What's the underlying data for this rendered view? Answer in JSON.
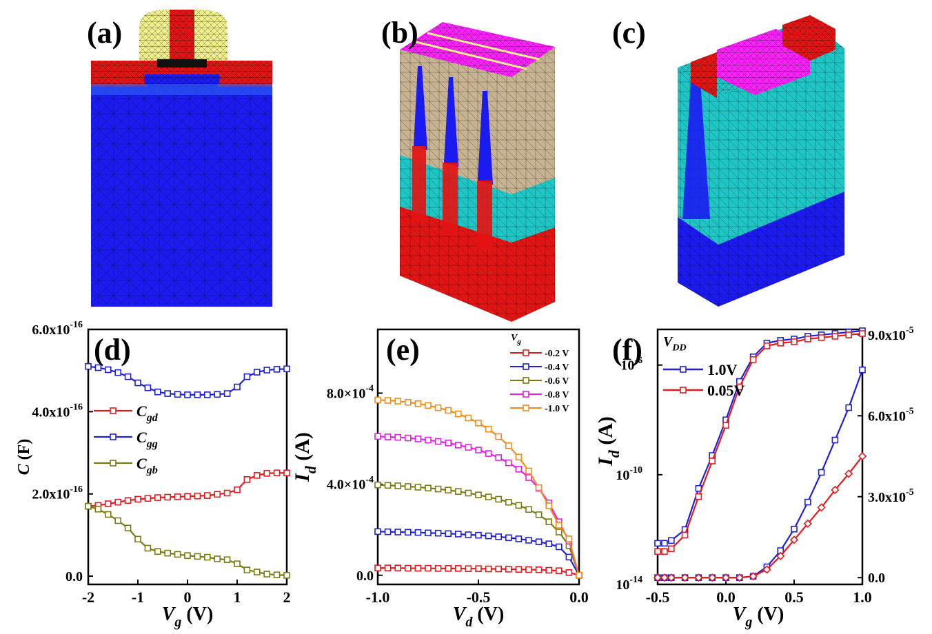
{
  "panel_labels": {
    "a": "(a)",
    "b": "(b)",
    "c": "(c)",
    "d": "(d)",
    "e": "(e)",
    "f": "(f)"
  },
  "colors": {
    "red": "#e41a1c",
    "blue": "#1f1fd6",
    "olive": "#7a7a10",
    "magenta": "#e61ee6",
    "orange": "#f28c1a",
    "mesh_blue": "#1b1bf0",
    "mesh_red": "#e31414",
    "mesh_cyan": "#1fc6c6",
    "mesh_tan": "#c7b391",
    "mesh_magenta": "#ff22ff",
    "mesh_yellow": "#f0f08c",
    "mesh_lightblue": "#2e62f5"
  },
  "chart_data": [
    {
      "id": "d",
      "type": "line",
      "title": "",
      "xlabel": "V",
      "xlabel_sub": "g",
      "xlabel_unit": "(V)",
      "ylabel": "C",
      "ylabel_unit": "(F)",
      "xlim": [
        -2,
        2
      ],
      "ylim": [
        -0.2,
        6.0
      ],
      "xticks": [
        -2,
        -1,
        0,
        1,
        2
      ],
      "xtick_labels": [
        "-2",
        "-1",
        "0",
        "1",
        "2"
      ],
      "yticks": [
        0,
        2,
        4,
        6
      ],
      "ytick_labels": [
        "0.0",
        "2.0x10",
        "4.0x10",
        "6.0x10"
      ],
      "ytick_exp": [
        "",
        "-16",
        "-16",
        "-16"
      ],
      "x": [
        -2,
        -1.8,
        -1.6,
        -1.4,
        -1.2,
        -1.0,
        -0.8,
        -0.6,
        -0.4,
        -0.2,
        0,
        0.2,
        0.4,
        0.6,
        0.8,
        1.0,
        1.2,
        1.4,
        1.6,
        1.8,
        2.0
      ],
      "series": [
        {
          "name": "C",
          "sub": "gd",
          "color": "red",
          "values": [
            1.7,
            1.72,
            1.76,
            1.8,
            1.84,
            1.87,
            1.89,
            1.91,
            1.92,
            1.93,
            1.94,
            1.95,
            1.96,
            1.99,
            2.02,
            2.1,
            2.35,
            2.45,
            2.5,
            2.51,
            2.51
          ]
        },
        {
          "name": "C",
          "sub": "gg",
          "color": "blue",
          "values": [
            5.1,
            5.07,
            5.02,
            4.95,
            4.85,
            4.7,
            4.58,
            4.48,
            4.44,
            4.42,
            4.41,
            4.41,
            4.41,
            4.42,
            4.44,
            4.6,
            4.85,
            4.96,
            5.01,
            5.03,
            5.04
          ]
        },
        {
          "name": "C",
          "sub": "gb",
          "color": "olive",
          "values": [
            1.7,
            1.63,
            1.5,
            1.35,
            1.17,
            0.9,
            0.68,
            0.6,
            0.56,
            0.53,
            0.5,
            0.48,
            0.46,
            0.42,
            0.4,
            0.3,
            0.15,
            0.1,
            0.05,
            0.03,
            0.02
          ]
        }
      ],
      "legend": "middle-left"
    },
    {
      "id": "e",
      "type": "line",
      "title": "",
      "xlabel": "V",
      "xlabel_sub": "d",
      "xlabel_unit": "(V)",
      "ylabel": "I",
      "ylabel_sub": "d",
      "ylabel_unit": "(A)",
      "xlim": [
        -1.0,
        0.0
      ],
      "ylim": [
        -0.4,
        10.8
      ],
      "xticks": [
        -1.0,
        -0.5,
        0.0
      ],
      "xtick_labels": [
        "-1.0",
        "-0.5",
        "0.0"
      ],
      "yticks": [
        0,
        4,
        8
      ],
      "ytick_labels": [
        "0.0",
        "4.0×10",
        "8.0×10"
      ],
      "ytick_exp": [
        "",
        "-4",
        "-4"
      ],
      "legend_title": "V",
      "legend_title_sub": "g",
      "x": [
        -1.0,
        -0.95,
        -0.9,
        -0.85,
        -0.8,
        -0.75,
        -0.7,
        -0.65,
        -0.6,
        -0.55,
        -0.5,
        -0.45,
        -0.4,
        -0.35,
        -0.3,
        -0.25,
        -0.2,
        -0.15,
        -0.1,
        -0.05,
        0.0
      ],
      "series": [
        {
          "name": "-0.2 V",
          "color": "red",
          "values": [
            0.32,
            0.32,
            0.32,
            0.31,
            0.31,
            0.31,
            0.3,
            0.3,
            0.3,
            0.29,
            0.29,
            0.28,
            0.28,
            0.27,
            0.26,
            0.25,
            0.24,
            0.22,
            0.2,
            0.12,
            0.0
          ]
        },
        {
          "name": "-0.4 V",
          "color": "blue",
          "values": [
            1.92,
            1.91,
            1.9,
            1.89,
            1.88,
            1.86,
            1.85,
            1.83,
            1.81,
            1.78,
            1.76,
            1.73,
            1.69,
            1.65,
            1.6,
            1.54,
            1.47,
            1.38,
            1.25,
            0.8,
            0.0
          ]
        },
        {
          "name": "-0.6 V",
          "color": "olive",
          "values": [
            3.97,
            3.95,
            3.93,
            3.9,
            3.87,
            3.83,
            3.79,
            3.74,
            3.68,
            3.61,
            3.53,
            3.44,
            3.34,
            3.21,
            3.07,
            2.89,
            2.66,
            2.35,
            1.9,
            1.3,
            0.0
          ]
        },
        {
          "name": "-0.8 V",
          "color": "magenta",
          "values": [
            6.1,
            6.08,
            6.06,
            6.03,
            5.99,
            5.94,
            5.88,
            5.81,
            5.72,
            5.62,
            5.5,
            5.35,
            5.17,
            4.94,
            4.66,
            4.29,
            3.82,
            3.18,
            2.35,
            1.5,
            0.0
          ]
        },
        {
          "name": "-1.0 V",
          "color": "orange",
          "values": [
            7.7,
            7.68,
            7.65,
            7.6,
            7.54,
            7.46,
            7.36,
            7.24,
            7.09,
            6.91,
            6.69,
            6.42,
            6.09,
            5.69,
            5.19,
            4.58,
            3.85,
            3.05,
            2.2,
            1.6,
            0.0
          ]
        }
      ],
      "legend": "top-right"
    },
    {
      "id": "f",
      "type": "line",
      "title": "",
      "xlabel": "V",
      "xlabel_sub": "g",
      "xlabel_unit": "(V)",
      "ylabel": "I",
      "ylabel_sub": "d",
      "ylabel_unit": "(A)",
      "xlim": [
        -0.5,
        1.0
      ],
      "ylog_lim": [
        -14,
        -4.7
      ],
      "ylinear_lim": [
        -2.5,
        92
      ],
      "xticks": [
        -0.5,
        0.0,
        0.5,
        1.0
      ],
      "xtick_labels": [
        "-0.5",
        "0.0",
        "0.5",
        "1.0"
      ],
      "yticks_log": [
        -14,
        -10,
        -6
      ],
      "ytick_labels_log": [
        "10",
        "10",
        "10"
      ],
      "ytick_exp_log": [
        "-14",
        "-10",
        "-6"
      ],
      "yticks_right": [
        0,
        30,
        60,
        90
      ],
      "ytick_labels_right": [
        "0.0",
        "3.0x10",
        "6.0x10",
        "9.0x10"
      ],
      "ytick_exp_right": [
        "",
        "-5",
        "-5",
        "-5"
      ],
      "legend_title": "V",
      "legend_title_sub": "DD",
      "x": [
        -0.5,
        -0.45,
        -0.4,
        -0.3,
        -0.2,
        -0.1,
        0.0,
        0.1,
        0.2,
        0.3,
        0.4,
        0.5,
        0.6,
        0.7,
        0.8,
        0.9,
        1.0
      ],
      "series": [
        {
          "name": "1.0V",
          "color": "blue",
          "scale": "log",
          "values": [
            -12.5,
            -12.5,
            -12.4,
            -12.0,
            -10.5,
            -9.3,
            -8.0,
            -6.6,
            -5.7,
            -5.2,
            -5.1,
            -5.05,
            -4.95,
            -4.9,
            -4.85,
            -4.8,
            -4.75
          ]
        },
        {
          "name": "0.05V",
          "color": "red",
          "scale": "log",
          "values": [
            -12.8,
            -12.8,
            -12.7,
            -12.2,
            -10.8,
            -9.5,
            -8.2,
            -6.8,
            -5.8,
            -5.3,
            -5.2,
            -5.15,
            -5.05,
            -5.0,
            -4.95,
            -4.9,
            -4.85
          ]
        },
        {
          "name": "1.0V",
          "color": "blue",
          "scale": "linear",
          "values": [
            0,
            0,
            0,
            0,
            0,
            0,
            0,
            0,
            0.5,
            4.0,
            10.0,
            18.0,
            28.0,
            39.0,
            51.0,
            63.0,
            77.0
          ]
        },
        {
          "name": "0.05V",
          "color": "red",
          "scale": "linear",
          "values": [
            0,
            0,
            0,
            0,
            0,
            0,
            0,
            0,
            0.5,
            3.0,
            8.0,
            14.0,
            20.0,
            26.0,
            32.5,
            38.5,
            45.0
          ]
        }
      ],
      "legend": "top-left"
    }
  ]
}
